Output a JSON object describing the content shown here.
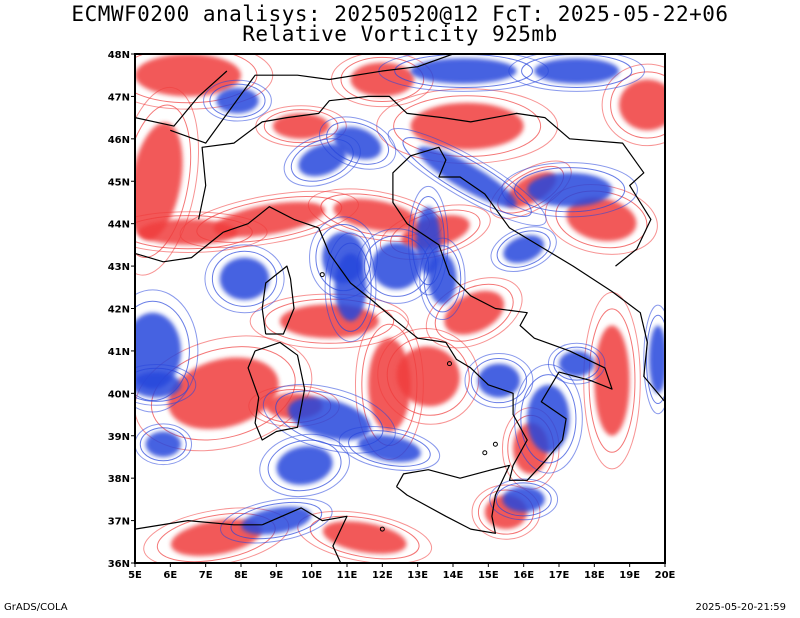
{
  "header": {
    "title_line1": "ECMWF0200 analisys: 20250520@12 FcT: 2025-05-22+06",
    "title_line2": "Relative Vorticity 925mb"
  },
  "map": {
    "region": "Italy",
    "projection": "lat-lon",
    "lon_range": [
      5,
      20
    ],
    "lat_range": [
      36,
      48
    ],
    "lon_ticks": [
      "5E",
      "6E",
      "7E",
      "8E",
      "9E",
      "10E",
      "11E",
      "12E",
      "13E",
      "14E",
      "15E",
      "16E",
      "17E",
      "18E",
      "19E",
      "20E"
    ],
    "lat_ticks": [
      "36N",
      "37N",
      "38N",
      "39N",
      "40N",
      "41N",
      "42N",
      "43N",
      "44N",
      "45N",
      "46N",
      "47N",
      "48N"
    ],
    "positive_color": "#f03c3c",
    "negative_color": "#2846dc",
    "coastline_color": "#000000"
  },
  "footer": {
    "left": "GrADS/COLA",
    "right": "2025-05-20-21:59"
  }
}
